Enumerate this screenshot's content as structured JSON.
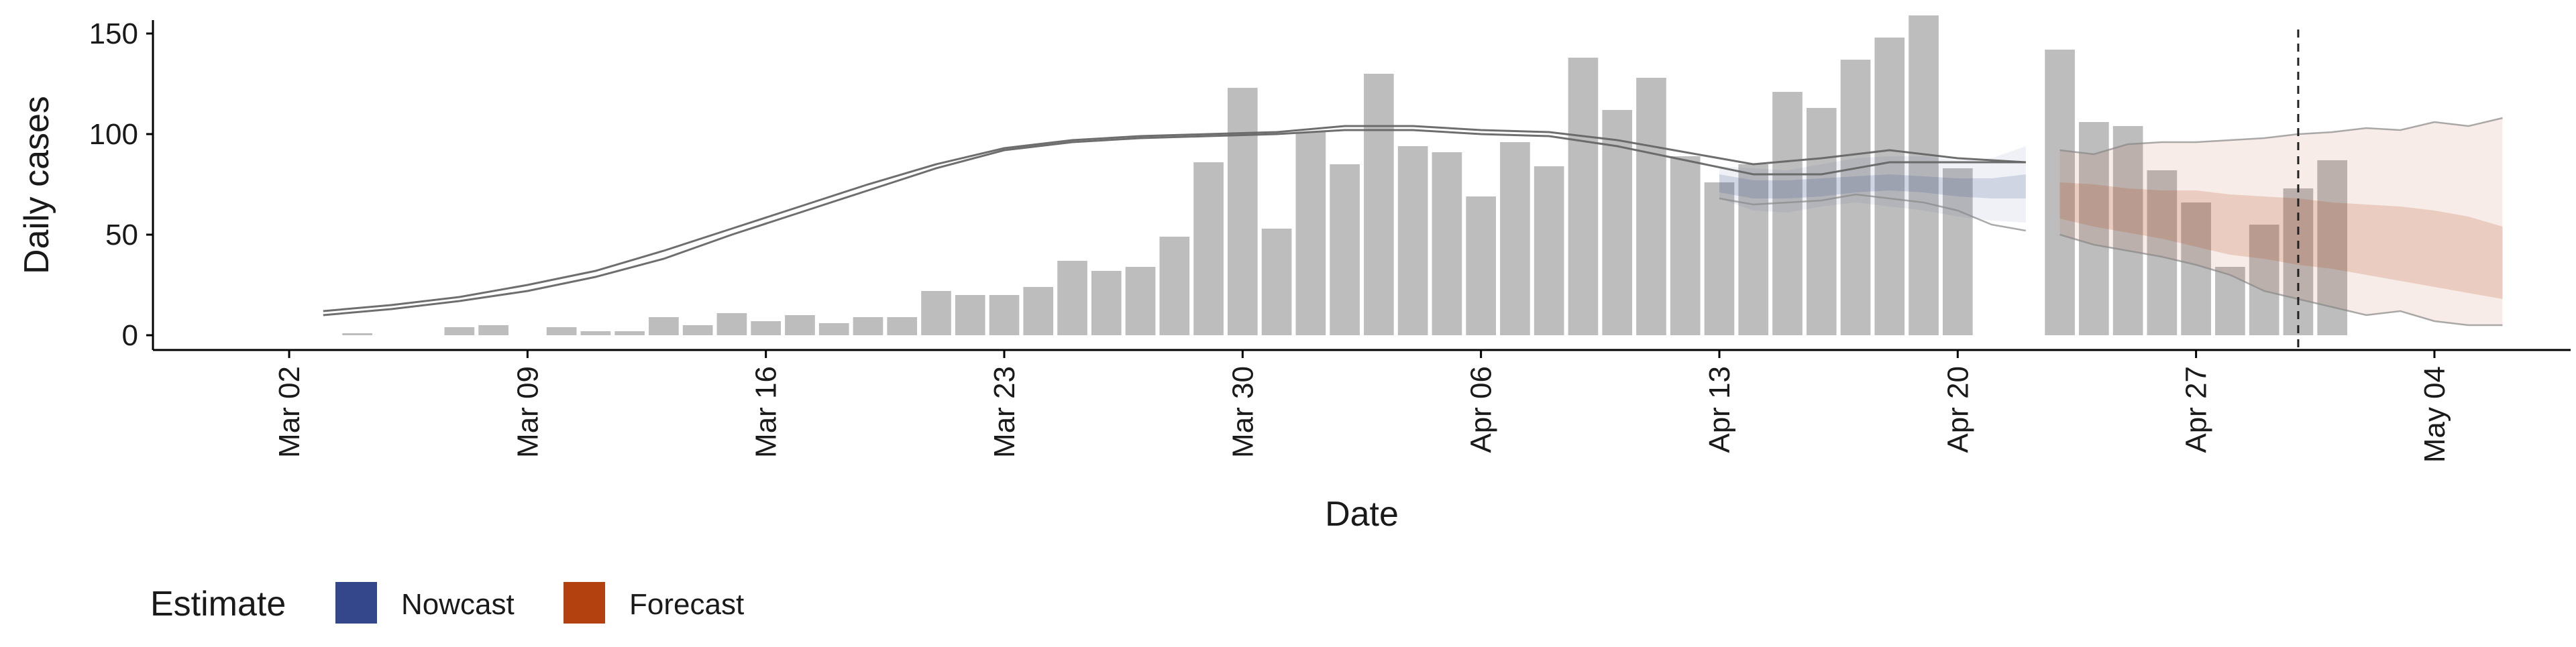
{
  "chart_data": {
    "type": "bar",
    "title": "",
    "xlabel": "Date",
    "ylabel": "Daily cases",
    "yticks": [
      0,
      50,
      100,
      150
    ],
    "ylim": [
      0,
      165
    ],
    "xlim": [
      "2020-02-27",
      "2020-05-08"
    ],
    "xticks": [
      {
        "date": "2020-03-02",
        "label": "Mar 02"
      },
      {
        "date": "2020-03-09",
        "label": "Mar 09"
      },
      {
        "date": "2020-03-16",
        "label": "Mar 16"
      },
      {
        "date": "2020-03-23",
        "label": "Mar 23"
      },
      {
        "date": "2020-03-30",
        "label": "Mar 30"
      },
      {
        "date": "2020-04-06",
        "label": "Apr 06"
      },
      {
        "date": "2020-04-13",
        "label": "Apr 13"
      },
      {
        "date": "2020-04-20",
        "label": "Apr 20"
      },
      {
        "date": "2020-04-27",
        "label": "Apr 27"
      },
      {
        "date": "2020-05-04",
        "label": "May 04"
      }
    ],
    "grid": false,
    "legend": {
      "title": "Estimate",
      "position": "bottom-left",
      "items": [
        {
          "name": "Nowcast",
          "color": "#34478A"
        },
        {
          "name": "Forecast",
          "color": "#B3400F"
        }
      ]
    },
    "bar_color": "#BDBDBD",
    "reference_line_date": "2020-04-30",
    "bars": {
      "dates": [
        "2020-03-04",
        "2020-03-07",
        "2020-03-08",
        "2020-03-10",
        "2020-03-11",
        "2020-03-12",
        "2020-03-13",
        "2020-03-14",
        "2020-03-15",
        "2020-03-16",
        "2020-03-17",
        "2020-03-18",
        "2020-03-19",
        "2020-03-20",
        "2020-03-21",
        "2020-03-22",
        "2020-03-23",
        "2020-03-24",
        "2020-03-25",
        "2020-03-26",
        "2020-03-27",
        "2020-03-28",
        "2020-03-29",
        "2020-03-30",
        "2020-03-31",
        "2020-04-01",
        "2020-04-02",
        "2020-04-03",
        "2020-04-04",
        "2020-04-05",
        "2020-04-06",
        "2020-04-07",
        "2020-04-08",
        "2020-04-09",
        "2020-04-10",
        "2020-04-11",
        "2020-04-12",
        "2020-04-13",
        "2020-04-14",
        "2020-04-15",
        "2020-04-16",
        "2020-04-17",
        "2020-04-18",
        "2020-04-19",
        "2020-04-20",
        "2020-04-23",
        "2020-04-24",
        "2020-04-25",
        "2020-04-26",
        "2020-04-27",
        "2020-04-28",
        "2020-04-29",
        "2020-04-30",
        "2020-05-01"
      ],
      "values": [
        1,
        4,
        5,
        4,
        2,
        2,
        9,
        5,
        11,
        7,
        10,
        6,
        9,
        9,
        22,
        20,
        20,
        24,
        37,
        32,
        34,
        49,
        86,
        123,
        53,
        101,
        85,
        130,
        94,
        91,
        69,
        96,
        84,
        138,
        112,
        128,
        89,
        76,
        85,
        121,
        113,
        137,
        148,
        159,
        83,
        142,
        106,
        104,
        82,
        66,
        34,
        55,
        73,
        87
      ]
    },
    "series": [
      {
        "name": "Nowcast",
        "color": "#34478A",
        "x": [
          "2020-04-13",
          "2020-04-14",
          "2020-04-15",
          "2020-04-16",
          "2020-04-17",
          "2020-04-18",
          "2020-04-19",
          "2020-04-20",
          "2020-04-21",
          "2020-04-22"
        ],
        "inner_lower": [
          71,
          68,
          68,
          69,
          71,
          72,
          71,
          69,
          68,
          68
        ],
        "inner_upper": [
          80,
          77,
          77,
          78,
          79,
          80,
          79,
          78,
          78,
          80
        ],
        "outer_lower": [
          68,
          62,
          61,
          64,
          66,
          64,
          62,
          59,
          57,
          56
        ],
        "outer_upper": [
          84,
          83,
          82,
          85,
          88,
          89,
          89,
          87,
          88,
          94
        ]
      },
      {
        "name": "Forecast",
        "color": "#B3400F",
        "x": [
          "2020-04-23",
          "2020-04-24",
          "2020-04-25",
          "2020-04-26",
          "2020-04-27",
          "2020-04-28",
          "2020-04-29",
          "2020-04-30",
          "2020-05-01",
          "2020-05-02",
          "2020-05-03",
          "2020-05-04",
          "2020-05-05",
          "2020-05-06"
        ],
        "inner_lower": [
          58,
          54,
          51,
          48,
          44,
          40,
          38,
          35,
          33,
          30,
          27,
          24,
          21,
          18
        ],
        "inner_upper": [
          76,
          75,
          73,
          72,
          72,
          70,
          69,
          68,
          66,
          65,
          64,
          62,
          59,
          54
        ],
        "outer_lower": [
          50,
          45,
          42,
          39,
          35,
          30,
          22,
          18,
          14,
          10,
          12,
          7,
          5,
          5
        ],
        "outer_upper": [
          92,
          90,
          95,
          96,
          96,
          97,
          98,
          100,
          101,
          103,
          102,
          106,
          104,
          108
        ]
      }
    ],
    "lines": [
      {
        "x": [
          "2020-03-03",
          "2020-03-05",
          "2020-03-07",
          "2020-03-09",
          "2020-03-11",
          "2020-03-13",
          "2020-03-15",
          "2020-03-17",
          "2020-03-19",
          "2020-03-21",
          "2020-03-23",
          "2020-03-25",
          "2020-03-27",
          "2020-03-29",
          "2020-03-31",
          "2020-04-02",
          "2020-04-04",
          "2020-04-06",
          "2020-04-08",
          "2020-04-10",
          "2020-04-12",
          "2020-04-14",
          "2020-04-16",
          "2020-04-18",
          "2020-04-20",
          "2020-04-22"
        ],
        "y": [
          10,
          13,
          17,
          22,
          29,
          38,
          50,
          61,
          72,
          83,
          92,
          96,
          98,
          99,
          100,
          102,
          102,
          100,
          99,
          94,
          87,
          80,
          80,
          86,
          86,
          86
        ]
      },
      {
        "x": [
          "2020-03-03",
          "2020-03-05",
          "2020-03-07",
          "2020-03-09",
          "2020-03-11",
          "2020-03-13",
          "2020-03-15",
          "2020-03-17",
          "2020-03-19",
          "2020-03-21",
          "2020-03-23",
          "2020-03-25",
          "2020-03-27",
          "2020-03-29",
          "2020-03-31",
          "2020-04-02",
          "2020-04-04",
          "2020-04-06",
          "2020-04-08",
          "2020-04-10",
          "2020-04-12",
          "2020-04-14",
          "2020-04-16",
          "2020-04-18",
          "2020-04-20",
          "2020-04-22"
        ],
        "y": [
          12,
          15,
          19,
          25,
          32,
          42,
          53,
          64,
          75,
          85,
          93,
          97,
          99,
          100,
          101,
          104,
          104,
          102,
          101,
          97,
          91,
          85,
          88,
          92,
          88,
          86
        ]
      },
      {
        "x": [
          "2020-04-13",
          "2020-04-14",
          "2020-04-15",
          "2020-04-16",
          "2020-04-17",
          "2020-04-18",
          "2020-04-19",
          "2020-04-20",
          "2020-04-21",
          "2020-04-22"
        ],
        "y": [
          68,
          65,
          66,
          67,
          70,
          68,
          66,
          62,
          55,
          52
        ]
      },
      {
        "x": [
          "2020-04-23",
          "2020-04-24",
          "2020-04-25",
          "2020-04-26",
          "2020-04-27",
          "2020-04-28",
          "2020-04-29",
          "2020-04-30",
          "2020-05-01",
          "2020-05-02",
          "2020-05-03",
          "2020-05-04",
          "2020-05-05",
          "2020-05-06"
        ],
        "y": [
          92,
          90,
          95,
          96,
          96,
          97,
          98,
          100,
          101,
          103,
          102,
          106,
          104,
          108
        ]
      },
      {
        "x": [
          "2020-04-23",
          "2020-04-24",
          "2020-04-25",
          "2020-04-26",
          "2020-04-27",
          "2020-04-28",
          "2020-04-29",
          "2020-04-30",
          "2020-05-01",
          "2020-05-02",
          "2020-05-03",
          "2020-05-04",
          "2020-05-05",
          "2020-05-06"
        ],
        "y": [
          50,
          45,
          42,
          39,
          35,
          30,
          22,
          18,
          14,
          10,
          12,
          7,
          5,
          5
        ]
      }
    ]
  }
}
